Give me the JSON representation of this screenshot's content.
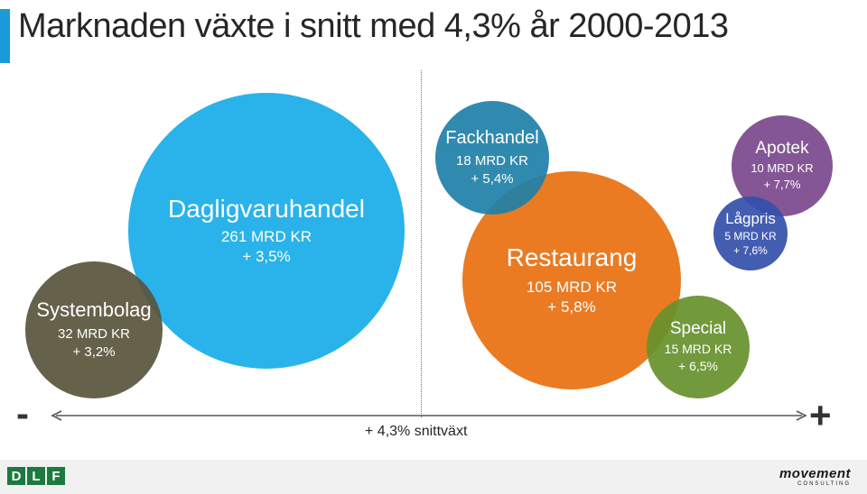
{
  "title": "Marknaden växte i snitt med 4,3% år 2000-2013",
  "chart_data": {
    "type": "bubble",
    "title": "Marknaden växte i snitt med 4,3% år 2000-2013",
    "x_axis": {
      "label": "+ 4,3% snittväxt",
      "min_label": "-",
      "max_label": "+",
      "reference_growth_pct": 4.3
    },
    "series": [
      {
        "key": "systembolag",
        "name": "Systembolag",
        "value_label": "32 MRD KR",
        "growth_label": "+ 3,2%",
        "size_mrd_kr": 32,
        "growth_pct": 3.2,
        "color": "#58543c"
      },
      {
        "key": "dagligvaruhandel",
        "name": "Dagligvaruhandel",
        "value_label": "261 MRD KR",
        "growth_label": "+ 3,5%",
        "size_mrd_kr": 261,
        "growth_pct": 3.5,
        "color": "#17ade8"
      },
      {
        "key": "fackhandel",
        "name": "Fackhandel",
        "value_label": "18 MRD KR",
        "growth_label": "+ 5,4%",
        "size_mrd_kr": 18,
        "growth_pct": 5.4,
        "color": "#1e80a8"
      },
      {
        "key": "restaurang",
        "name": "Restaurang",
        "value_label": "105 MRD KR",
        "growth_label": "+ 5,8%",
        "size_mrd_kr": 105,
        "growth_pct": 5.8,
        "color": "#e87010"
      },
      {
        "key": "special",
        "name": "Special",
        "value_label": "15 MRD KR",
        "growth_label": "+ 6,5%",
        "size_mrd_kr": 15,
        "growth_pct": 6.5,
        "color": "#66912c"
      },
      {
        "key": "lagpris",
        "name": "Lågpris",
        "value_label": "5 MRD KR",
        "growth_label": "+ 7,6%",
        "size_mrd_kr": 5,
        "growth_pct": 7.6,
        "color": "#334faa"
      },
      {
        "key": "apotek",
        "name": "Apotek",
        "value_label": "10 MRD KR",
        "growth_label": "+ 7,7%",
        "size_mrd_kr": 10,
        "growth_pct": 7.7,
        "color": "#79488c"
      }
    ]
  },
  "footer": {
    "left_logo_letters": [
      "D",
      "L",
      "F"
    ],
    "right_logo_name": "movement",
    "right_logo_sub": "CONSULTING"
  }
}
